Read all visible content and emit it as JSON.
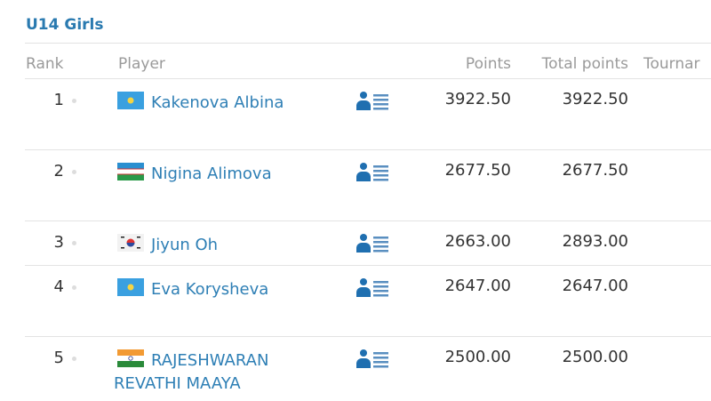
{
  "section_title": "U14 Girls",
  "columns": {
    "rank": "Rank",
    "player": "Player",
    "points": "Points",
    "total_points": "Total points",
    "tournaments": "Tournar"
  },
  "accent_color": "#2e7fb5",
  "rows": [
    {
      "rank": "1",
      "flag": "kazakhstan",
      "name": "Kakenova Albina",
      "name2": "",
      "points": "3922.50",
      "total": "3922.50",
      "icon": "player-profile-icon"
    },
    {
      "rank": "2",
      "flag": "uzbekistan",
      "name": "Nigina Alimova",
      "name2": "",
      "points": "2677.50",
      "total": "2677.50",
      "icon": "player-profile-icon"
    },
    {
      "rank": "3",
      "flag": "south-korea",
      "name": "Jiyun Oh",
      "name2": "",
      "points": "2663.00",
      "total": "2893.00",
      "icon": "player-profile-icon"
    },
    {
      "rank": "4",
      "flag": "kazakhstan",
      "name": "Eva Korysheva",
      "name2": "",
      "points": "2647.00",
      "total": "2647.00",
      "icon": "player-profile-icon"
    },
    {
      "rank": "5",
      "flag": "india",
      "name": "RAJESHWARAN",
      "name2": "REVATHI MAAYA",
      "points": "2500.00",
      "total": "2500.00",
      "icon": "player-profile-icon"
    }
  ]
}
